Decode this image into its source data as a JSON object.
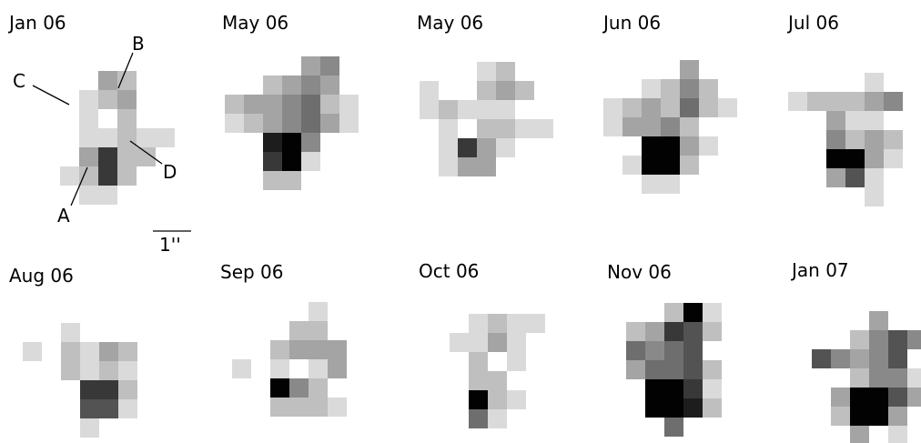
{
  "panels": [
    {
      "label": "Jan 06"
    },
    {
      "label": "May 06"
    },
    {
      "label": "May 06"
    },
    {
      "label": "Jun 06"
    },
    {
      "label": "Jul 06"
    },
    {
      "label": "Aug 06"
    },
    {
      "label": "Sep 06"
    },
    {
      "label": "Oct 06"
    },
    {
      "label": "Nov 06"
    },
    {
      "label": "Jan 07"
    }
  ],
  "annotations": {
    "a": "A",
    "b": "B",
    "c": "C",
    "d": "D"
  },
  "scale_bar": "1''"
}
